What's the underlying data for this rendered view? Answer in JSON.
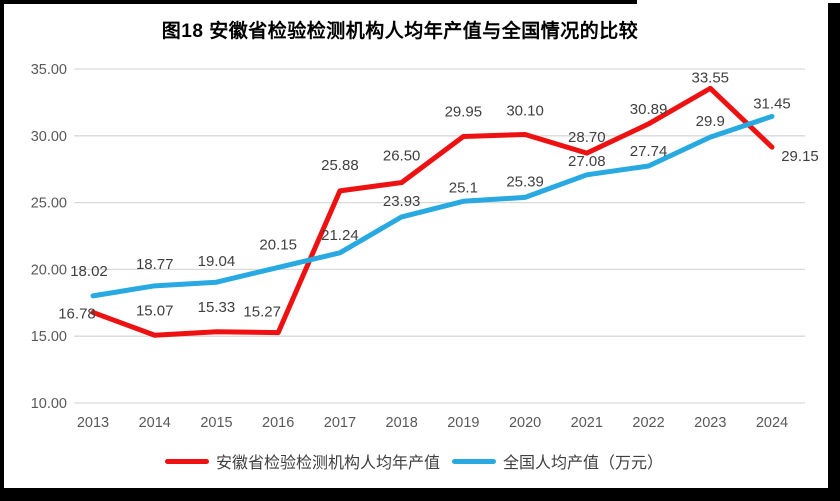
{
  "colors": {
    "anhui_series": "#EE1111",
    "national_series": "#29A9E1",
    "gridline": "#D9D9D9",
    "axis_text": "#595959",
    "data_label_text": "#404040",
    "title_text": "#000000",
    "frame": "#000000"
  },
  "chart_data": {
    "type": "line",
    "title": "图18 安徽省检验检测机构人均年产值与全国情况的比较",
    "xlabel": "",
    "ylabel": "",
    "categories": [
      "2013",
      "2014",
      "2015",
      "2016",
      "2017",
      "2018",
      "2019",
      "2020",
      "2021",
      "2022",
      "2023",
      "2024"
    ],
    "series": [
      {
        "name": "安徽省检验检测机构人均年产值",
        "color": "#EE1111",
        "values": [
          16.78,
          15.07,
          15.33,
          15.27,
          25.88,
          26.5,
          29.95,
          30.1,
          28.7,
          30.89,
          33.55,
          29.15
        ],
        "labels": [
          "16.78",
          "15.07",
          "15.33",
          "15.27",
          "25.88",
          "26.50",
          "29.95",
          "30.10",
          "28.70",
          "30.89",
          "33.55",
          "29.15"
        ]
      },
      {
        "name": "全国人均产值（万元）",
        "color": "#29A9E1",
        "values": [
          18.02,
          18.77,
          19.04,
          20.15,
          21.24,
          23.93,
          25.1,
          25.39,
          27.08,
          27.74,
          29.9,
          31.45
        ],
        "labels": [
          "18.02",
          "18.77",
          "19.04",
          "20.15",
          "21.24",
          "23.93",
          "25.1",
          "25.39",
          "27.08",
          "27.74",
          "29.9",
          "31.45"
        ]
      }
    ],
    "ylim": [
      10,
      35
    ],
    "ytick_step": 5,
    "yticks": [
      "35.00",
      "30.00",
      "25.00",
      "20.00",
      "15.00",
      "10.00"
    ],
    "grid": true,
    "legend_position": "bottom",
    "data_labels_visible": true
  }
}
